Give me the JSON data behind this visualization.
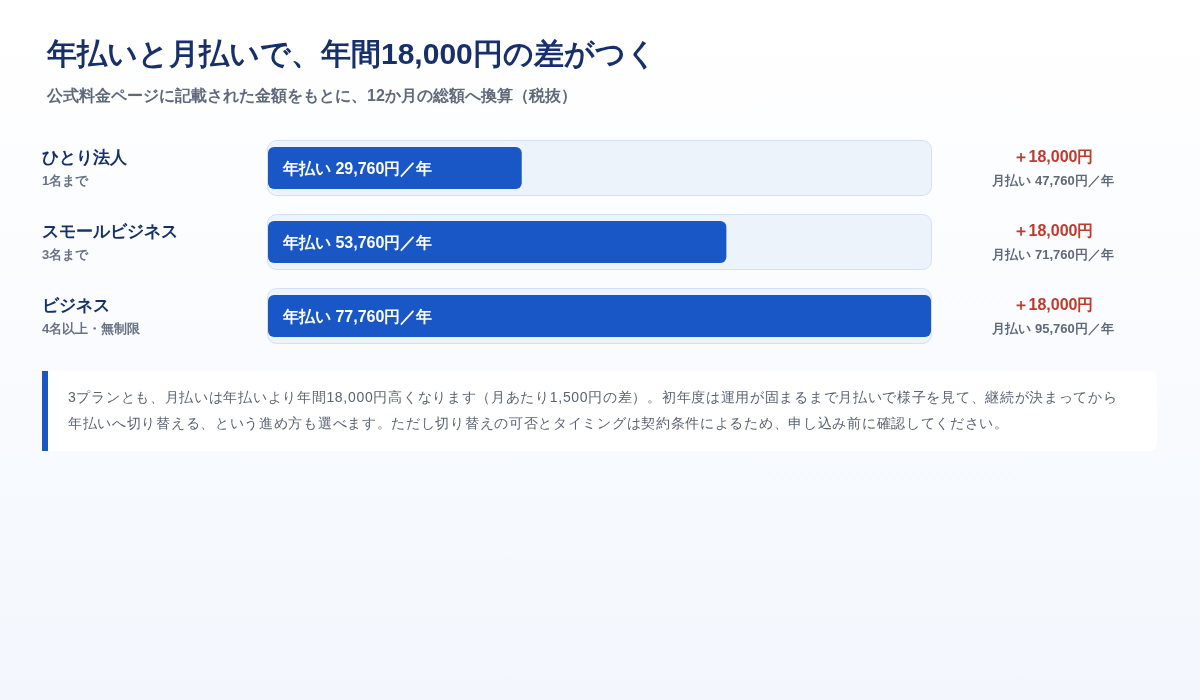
{
  "chart_data": {
    "type": "bar",
    "orientation": "horizontal",
    "title": "年払いと月払いで、年間18,000円の差がつく",
    "subtitle": "公式料金ページに記載された金額をもとに、12か月の総額へ換算（税抜）",
    "categories": [
      "ひとり法人\n1名まで",
      "スモールビジネス\n3名まで",
      "ビジネス\n4名以上・無制限"
    ],
    "values": [
      29760,
      53760,
      77760
    ],
    "value_labels": [
      "年払い 29,760円／年",
      "年払い 53,760円／年",
      "年払い 77,760円／年"
    ],
    "color": "#1857c5",
    "xlim": [
      0,
      77760
    ],
    "tick_labels": "y",
    "bands": [
      {
        "axis": "x",
        "from": 0,
        "to": 77760,
        "color": "#edf3fb"
      },
      {
        "axis": "x",
        "from": 0,
        "to": 77760,
        "color": "#edf3fb"
      },
      {
        "axis": "x",
        "from": 0,
        "to": 77760,
        "color": "#edf3fb"
      }
    ],
    "annotations": [
      "＋18,000円",
      "月払い 47,760円／年",
      "＋18,000円",
      "月払い 71,760円／年",
      "＋18,000円",
      "月払い 95,760円／年",
      "3プランとも、月払いは年払いより年間18,000円高くなります（月あたり1,500円の差）。初年度は運用が固まるまで月払いで様子を見て、継続が決まってから年払いへ切り替える、という進め方も選べます。ただし切り替えの可否とタイミングは契約条件によるため、申し込み前に確認してください。"
    ]
  }
}
